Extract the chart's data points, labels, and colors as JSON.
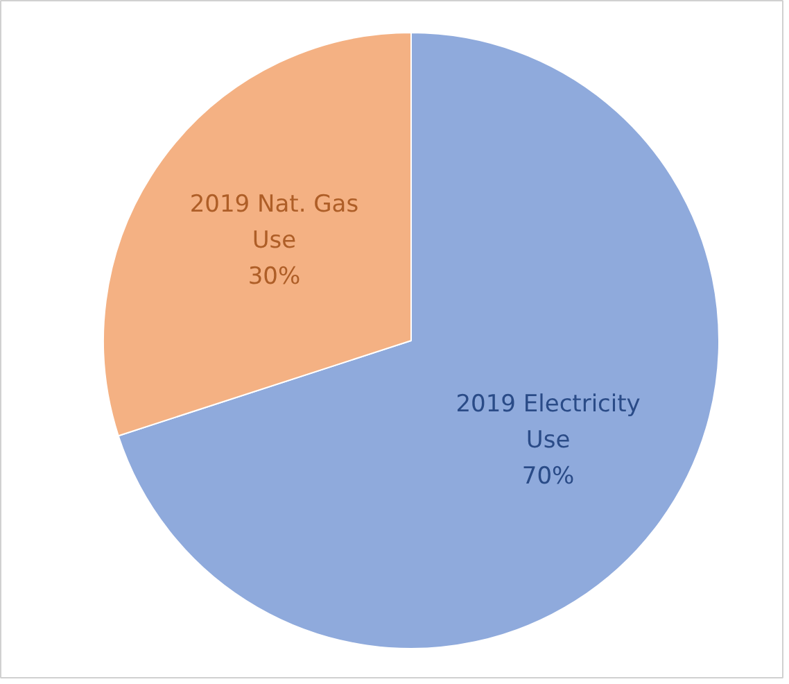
{
  "chart_data": {
    "type": "pie",
    "categories": [
      "2019 Electricity Use",
      "2019 Nat. Gas Use"
    ],
    "values": [
      70,
      30
    ],
    "colors": [
      "#8faadc",
      "#f4b183"
    ],
    "value_labels": [
      "70%",
      "30%"
    ]
  }
}
